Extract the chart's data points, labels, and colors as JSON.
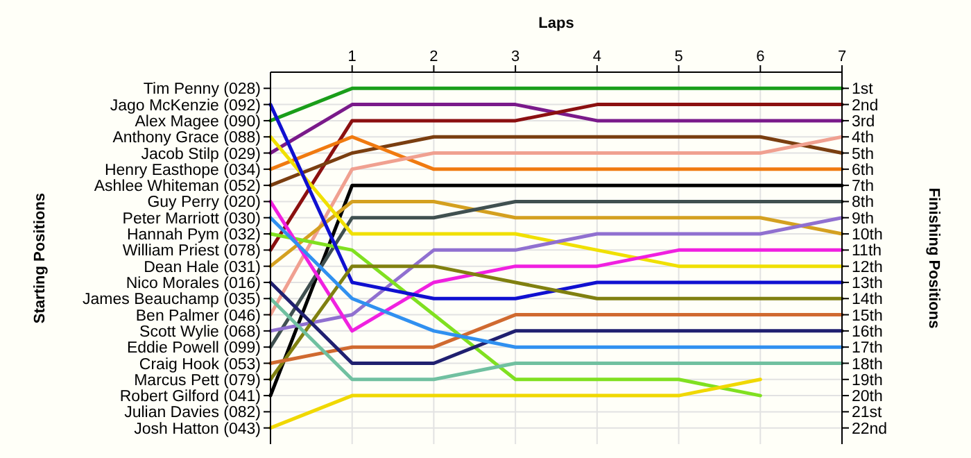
{
  "chart_data": {
    "type": "line",
    "xlabel": "Laps",
    "annotations": [
      "Starting Positions"
    ],
    "y2label": "Finishing Positions",
    "x": [
      0,
      1,
      2,
      3,
      4,
      5,
      6,
      7
    ],
    "xlim": [
      0,
      7
    ],
    "xticks": [
      1,
      2,
      3,
      4,
      5,
      6,
      7
    ],
    "y_categories": [
      "Tim Penny (028)",
      "Jago McKenzie (092)",
      "Alex Magee (090)",
      "Anthony Grace (088)",
      "Jacob Stilp (029)",
      "Henry Easthope (034)",
      "Ashlee Whiteman (052)",
      "Guy Perry (020)",
      "Peter Marriott (030)",
      "Hannah Pym (032)",
      "William Priest (078)",
      "Dean Hale (031)",
      "Nico Morales (016)",
      "James Beauchamp (035)",
      "Ben Palmer (046)",
      "Scott Wylie (068)",
      "Eddie Powell (099)",
      "Craig Hook (053)",
      "Marcus Pett (079)",
      "Robert Gilford (041)",
      "Julian Davies (082)",
      "Josh Hatton (043)"
    ],
    "y2lim": [
      23,
      0
    ],
    "y2ticks": [
      {
        "value": 1,
        "label": "1st"
      },
      {
        "value": 2,
        "label": "2nd"
      },
      {
        "value": 3,
        "label": "3rd"
      },
      {
        "value": 4,
        "label": "4th"
      },
      {
        "value": 5,
        "label": "5th"
      },
      {
        "value": 6,
        "label": "6th"
      },
      {
        "value": 7,
        "label": "7th"
      },
      {
        "value": 8,
        "label": "8th"
      },
      {
        "value": 9,
        "label": "9th"
      },
      {
        "value": 10,
        "label": "10th"
      },
      {
        "value": 11,
        "label": "11th"
      },
      {
        "value": 12,
        "label": "12th"
      },
      {
        "value": 13,
        "label": "13th"
      },
      {
        "value": 14,
        "label": "14th"
      },
      {
        "value": 15,
        "label": "15th"
      },
      {
        "value": 16,
        "label": "16th"
      },
      {
        "value": 17,
        "label": "17th"
      },
      {
        "value": 18,
        "label": "18th"
      },
      {
        "value": 19,
        "label": "19th"
      },
      {
        "value": 20,
        "label": "20th"
      },
      {
        "value": 21,
        "label": "21st"
      },
      {
        "value": 22,
        "label": "22nd"
      }
    ],
    "grid": true,
    "line_style": "solid",
    "marker": "none",
    "series": [
      {
        "color": "#1a9e1a",
        "axis": "y2",
        "values": [
          3,
          1,
          1,
          1,
          1,
          1,
          1,
          1
        ]
      },
      {
        "color": "#7a1a8a",
        "axis": "y2",
        "values": [
          5,
          2,
          2,
          2,
          3,
          3,
          3,
          3
        ]
      },
      {
        "color": "#8b1010",
        "axis": "y2",
        "values": [
          11,
          3,
          3,
          3,
          2,
          2,
          2,
          2
        ]
      },
      {
        "color": "#7a3e10",
        "axis": "y2",
        "values": [
          7,
          5,
          4,
          4,
          4,
          4,
          4,
          5
        ]
      },
      {
        "color": "#f07a10",
        "axis": "y2",
        "values": [
          6,
          4,
          6,
          6,
          6,
          6,
          6,
          6
        ]
      },
      {
        "color": "#f0a090",
        "axis": "y2",
        "values": [
          15,
          6,
          5,
          5,
          5,
          5,
          5,
          4
        ]
      },
      {
        "color": "#000000",
        "axis": "y2",
        "values": [
          20,
          7,
          7,
          7,
          7,
          7,
          7,
          7
        ]
      },
      {
        "color": "#d4a020",
        "axis": "y2",
        "values": [
          12,
          8,
          8,
          9,
          9,
          9,
          9,
          10
        ]
      },
      {
        "color": "#405050",
        "axis": "y2",
        "values": [
          17,
          9,
          9,
          8,
          8,
          8,
          8,
          8
        ]
      },
      {
        "color": "#f0e000",
        "axis": "y2",
        "values": [
          4,
          10,
          10,
          10,
          11,
          12,
          12,
          12
        ]
      },
      {
        "color": "#9070d0",
        "axis": "y2",
        "values": [
          16,
          15,
          11,
          11,
          10,
          10,
          10,
          9
        ]
      },
      {
        "color": "#80e020",
        "axis": "y2",
        "values": [
          10,
          11,
          15,
          19,
          19,
          19,
          20,
          null
        ]
      },
      {
        "color": "#f0d800",
        "axis": "y2",
        "values": [
          22,
          20,
          20,
          20,
          20,
          20,
          19,
          null
        ]
      },
      {
        "color": "#f020e0",
        "axis": "y2",
        "values": [
          8,
          16,
          13,
          12,
          12,
          11,
          11,
          11
        ]
      },
      {
        "color": "#1010d0",
        "axis": "y2",
        "values": [
          2,
          13,
          14,
          14,
          13,
          13,
          13,
          13
        ]
      },
      {
        "color": "#808010",
        "axis": "y2",
        "values": [
          19,
          12,
          12,
          13,
          14,
          14,
          14,
          14
        ]
      },
      {
        "color": "#d06a30",
        "axis": "y2",
        "values": [
          18,
          17,
          17,
          15,
          15,
          15,
          15,
          15
        ]
      },
      {
        "color": "#202070",
        "axis": "y2",
        "values": [
          13,
          18,
          18,
          16,
          16,
          16,
          16,
          16
        ]
      },
      {
        "color": "#3090f0",
        "axis": "y2",
        "values": [
          9,
          14,
          16,
          17,
          17,
          17,
          17,
          17
        ]
      },
      {
        "color": "#70c0a0",
        "axis": "y2",
        "values": [
          14,
          19,
          19,
          18,
          18,
          18,
          18,
          18
        ]
      }
    ]
  }
}
